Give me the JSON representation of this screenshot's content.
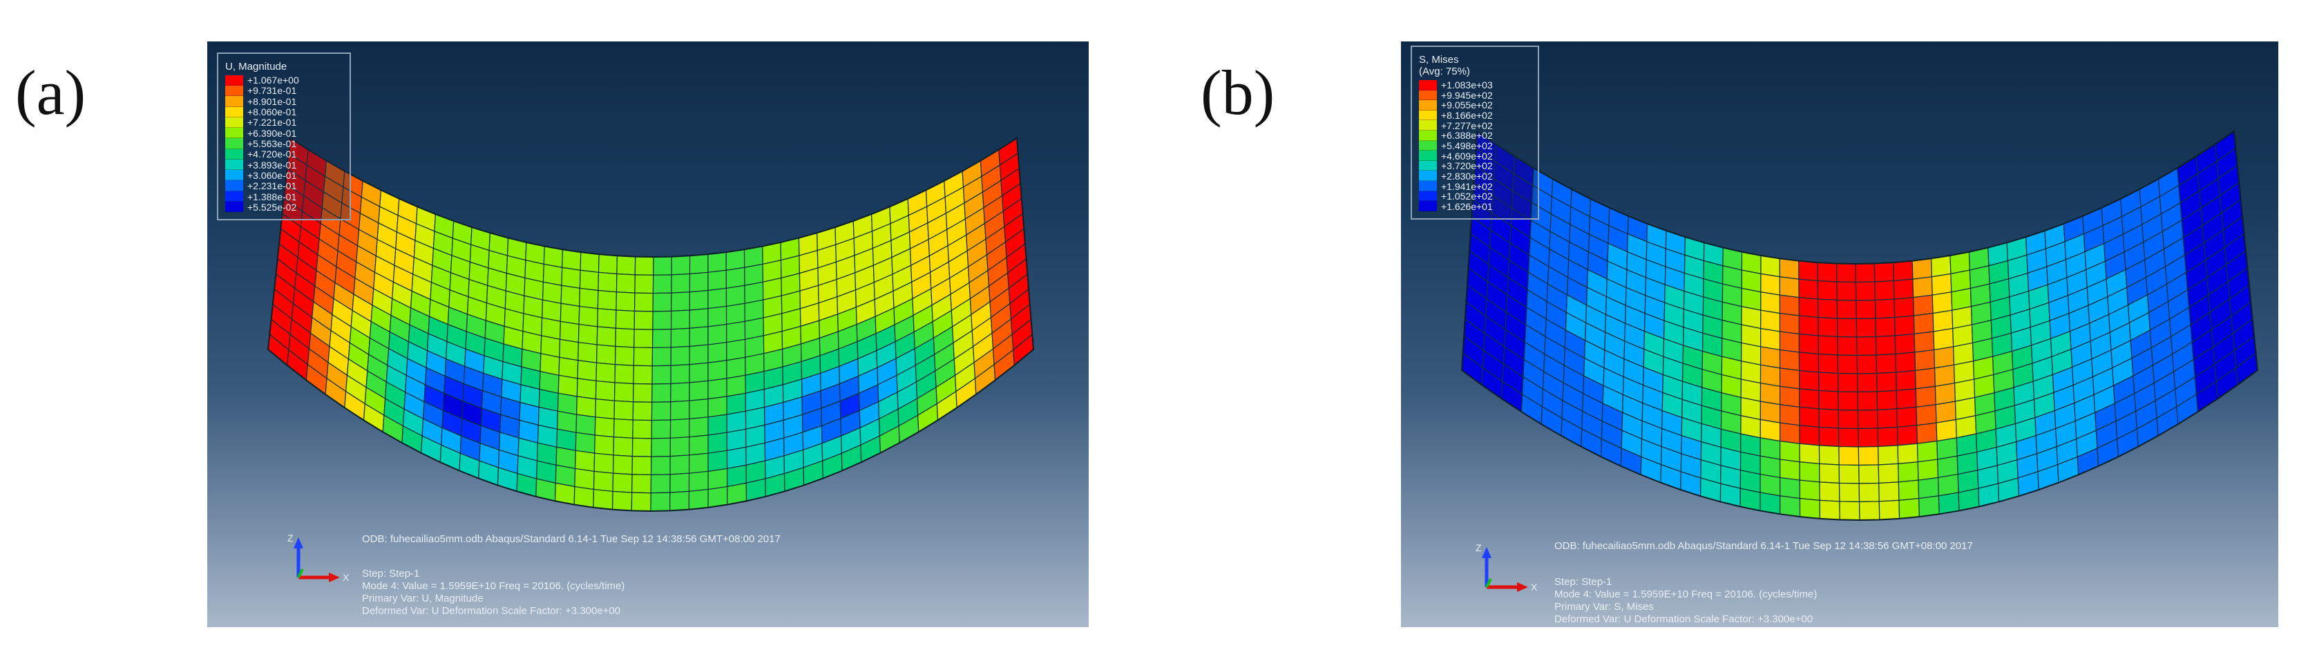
{
  "panels": [
    {
      "label": "(a)",
      "legend": {
        "title": "U, Magnitude",
        "subtitle": "",
        "values": [
          "+1.067e+00",
          "+9.731e-01",
          "+8.901e-01",
          "+8.060e-01",
          "+7.221e-01",
          "+6.390e-01",
          "+5.563e-01",
          "+4.720e-01",
          "+3.893e-01",
          "+3.060e-01",
          "+2.231e-01",
          "+1.388e-01",
          "+5.525e-02"
        ],
        "colors": [
          "#ff0000",
          "#ff5a00",
          "#ffa500",
          "#ffdc00",
          "#d4f000",
          "#8cf000",
          "#3ce23c",
          "#00d27a",
          "#00d2b9",
          "#00aaff",
          "#0064ff",
          "#0028ff",
          "#0000e0"
        ]
      },
      "info": {
        "odb": "ODB: fuhecailiao5mm.odb    Abaqus/Standard 6.14-1    Tue Sep 12 14:38:56 GMT+08:00 2017",
        "step": "Step: Step-1",
        "mode": "Mode       4: Value =  1.5959E+10 Freq =   20106.    (cycles/time)",
        "primary": "Primary Var: U, Magnitude",
        "deformed": "Deformed Var: U   Deformation Scale Factor: +3.300e+00"
      },
      "triad": {
        "z": "Z",
        "x": "X"
      }
    },
    {
      "label": "(b)",
      "legend": {
        "title": "S, Mises",
        "subtitle": "(Avg: 75%)",
        "values": [
          "+1.083e+03",
          "+9.945e+02",
          "+9.055e+02",
          "+8.166e+02",
          "+7.277e+02",
          "+6.388e+02",
          "+5.498e+02",
          "+4.609e+02",
          "+3.720e+02",
          "+2.830e+02",
          "+1.941e+02",
          "+1.052e+02",
          "+1.626e+01"
        ],
        "colors": [
          "#ff0000",
          "#ff5a00",
          "#ffa500",
          "#ffdc00",
          "#d4f000",
          "#8cf000",
          "#3ce23c",
          "#00d27a",
          "#00d2b9",
          "#00aaff",
          "#0064ff",
          "#0028ff",
          "#0000e0"
        ]
      },
      "info": {
        "odb": "ODB: fuhecailiao5mm.odb    Abaqus/Standard 6.14-1    Tue Sep 12 14:38:56 GMT+08:00 2017",
        "step": "Step: Step-1",
        "mode": "Mode       4: Value =  1.5959E+10 Freq =   20106.    (cycles/time)",
        "primary": "Primary Var: S, Mises",
        "deformed": "Deformed Var: U   Deformation Scale Factor: +3.300e+00"
      },
      "triad": {
        "z": "Z",
        "x": "X"
      }
    }
  ]
}
